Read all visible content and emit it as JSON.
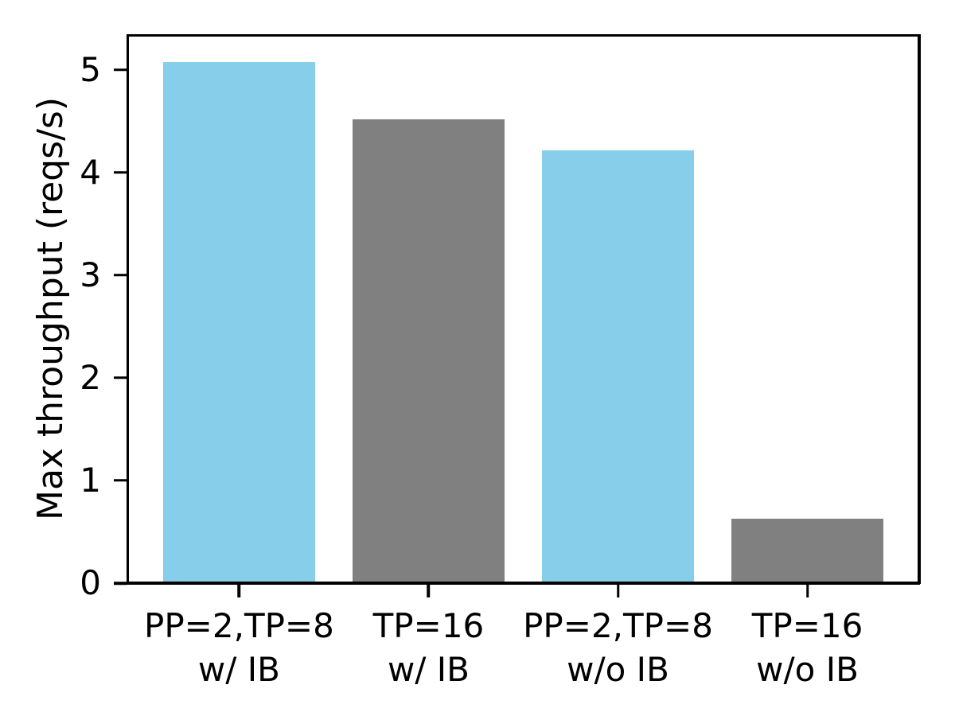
{
  "figure": {
    "background": "#ffffff"
  },
  "chart_data": {
    "type": "bar",
    "title": "",
    "xlabel": "",
    "ylabel": "Max throughput (reqs/s)",
    "categories": [
      "PP=2,TP=8\nw/ IB",
      "TP=16\nw/ IB",
      "PP=2,TP=8\nw/o IB",
      "TP=16\nw/o IB"
    ],
    "values": [
      5.08,
      4.52,
      4.22,
      0.63
    ],
    "bar_colors": [
      "#87ceeb",
      "#808080",
      "#87ceeb",
      "#808080"
    ],
    "bar_width": 0.8,
    "x_positions": [
      0,
      1,
      2,
      3
    ],
    "xlim": [
      -0.59,
      3.59
    ],
    "ylim": [
      0,
      5.34
    ],
    "yticks": [
      0,
      1,
      2,
      3,
      4,
      5
    ],
    "grid": false,
    "legend_position": "none",
    "axis_color": "#000000",
    "text_color": "#000000"
  }
}
